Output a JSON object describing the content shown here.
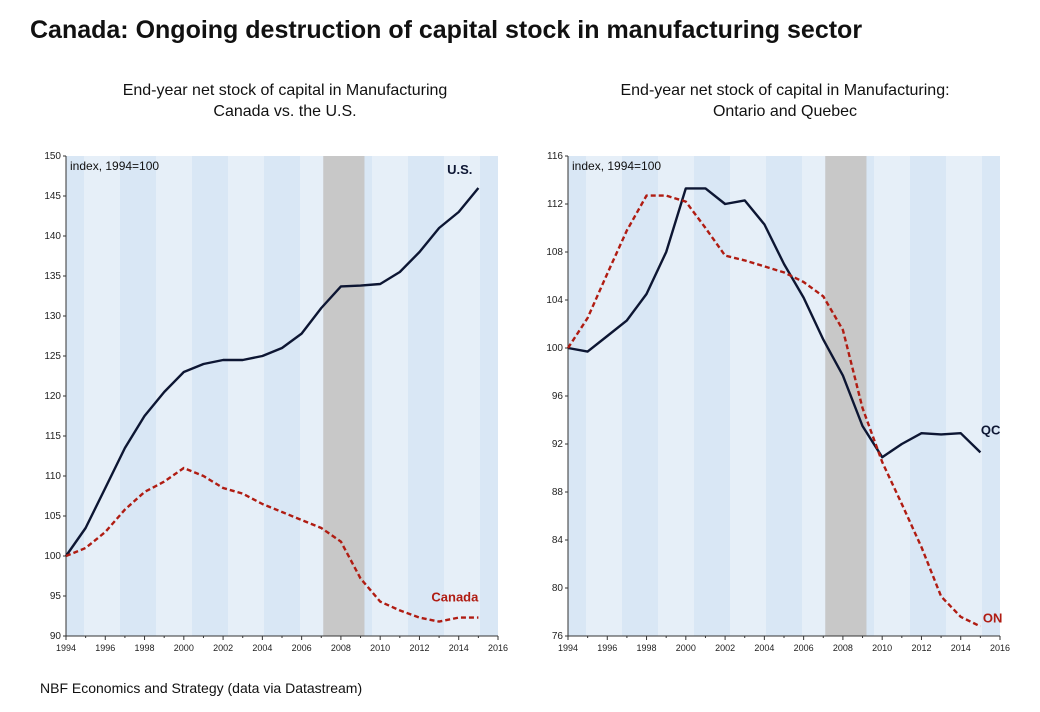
{
  "title": "Canada: Ongoing destruction of capital stock in manufacturing sector",
  "source": "NBF Economics and Strategy (data via Datastream)",
  "colors": {
    "panel_bg": "#d9e7f5",
    "recession_band": "#c8c8c8",
    "black_series": "#0d1633",
    "red_series": "#b01c12"
  },
  "chart_data": [
    {
      "type": "line",
      "title_lines": [
        "End-year net stock of capital in Manufacturing",
        "Canada vs. the U.S."
      ],
      "unit_label": "index, 1994=100",
      "x_range": [
        1994,
        2016
      ],
      "x_ticks": [
        1994,
        1996,
        1998,
        2000,
        2002,
        2004,
        2006,
        2008,
        2010,
        2012,
        2014,
        2016
      ],
      "ylim": [
        90,
        150
      ],
      "y_ticks": [
        90,
        95,
        100,
        105,
        110,
        115,
        120,
        125,
        130,
        135,
        140,
        145,
        150
      ],
      "recession_band": [
        2007.1,
        2009.2
      ],
      "series": [
        {
          "name": "U.S.",
          "style": "solid",
          "x": [
            1994,
            1995,
            1996,
            1997,
            1998,
            1999,
            2000,
            2001,
            2002,
            2003,
            2004,
            2005,
            2006,
            2007,
            2008,
            2009,
            2010,
            2011,
            2012,
            2013,
            2014,
            2015
          ],
          "y": [
            100,
            103.5,
            108.5,
            113.5,
            117.5,
            120.5,
            123,
            124,
            124.5,
            124.5,
            125,
            126,
            127.8,
            131,
            133.7,
            133.8,
            134,
            135.5,
            138,
            141,
            143,
            146
          ]
        },
        {
          "name": "Canada",
          "style": "dashed",
          "x": [
            1994,
            1995,
            1996,
            1997,
            1998,
            1999,
            2000,
            2001,
            2002,
            2003,
            2004,
            2005,
            2006,
            2007,
            2008,
            2009,
            2010,
            2011,
            2012,
            2013,
            2014,
            2015
          ],
          "y": [
            100,
            101,
            103,
            105.8,
            108,
            109.3,
            111,
            110,
            108.5,
            107.8,
            106.5,
            105.5,
            104.5,
            103.5,
            101.8,
            97.2,
            94.3,
            93.2,
            92.3,
            91.8,
            92.3,
            92.3
          ]
        }
      ]
    },
    {
      "type": "line",
      "title_lines": [
        "End-year net stock of capital in Manufacturing:",
        "Ontario and Quebec"
      ],
      "unit_label": "index, 1994=100",
      "x_range": [
        1994,
        2016
      ],
      "x_ticks": [
        1994,
        1996,
        1998,
        2000,
        2002,
        2004,
        2006,
        2008,
        2010,
        2012,
        2014,
        2016
      ],
      "ylim": [
        76,
        116
      ],
      "y_ticks": [
        76,
        80,
        84,
        88,
        92,
        96,
        100,
        104,
        108,
        112,
        116
      ],
      "recession_band": [
        2007.1,
        2009.2
      ],
      "series": [
        {
          "name": "QC",
          "style": "solid",
          "x": [
            1994,
            1995,
            1996,
            1997,
            1998,
            1999,
            2000,
            2001,
            2002,
            2003,
            2004,
            2005,
            2006,
            2007,
            2008,
            2009,
            2010,
            2011,
            2012,
            2013,
            2014,
            2015
          ],
          "y": [
            100,
            99.7,
            101,
            102.3,
            104.5,
            108,
            113.3,
            113.3,
            112,
            112.3,
            110.3,
            107,
            104.2,
            100.7,
            97.7,
            93.5,
            90.9,
            92,
            92.9,
            92.8,
            92.9,
            91.3
          ]
        },
        {
          "name": "ON",
          "style": "dashed",
          "x": [
            1994,
            1995,
            1996,
            1997,
            1998,
            1999,
            2000,
            2001,
            2002,
            2003,
            2004,
            2005,
            2006,
            2007,
            2008,
            2009,
            2010,
            2011,
            2012,
            2013,
            2014,
            2015
          ],
          "y": [
            100,
            102.5,
            106.2,
            109.8,
            112.7,
            112.7,
            112.2,
            110,
            107.7,
            107.3,
            106.8,
            106.3,
            105.5,
            104.3,
            101.5,
            95,
            90.5,
            87,
            83.4,
            79.3,
            77.6,
            76.8
          ]
        }
      ]
    }
  ]
}
